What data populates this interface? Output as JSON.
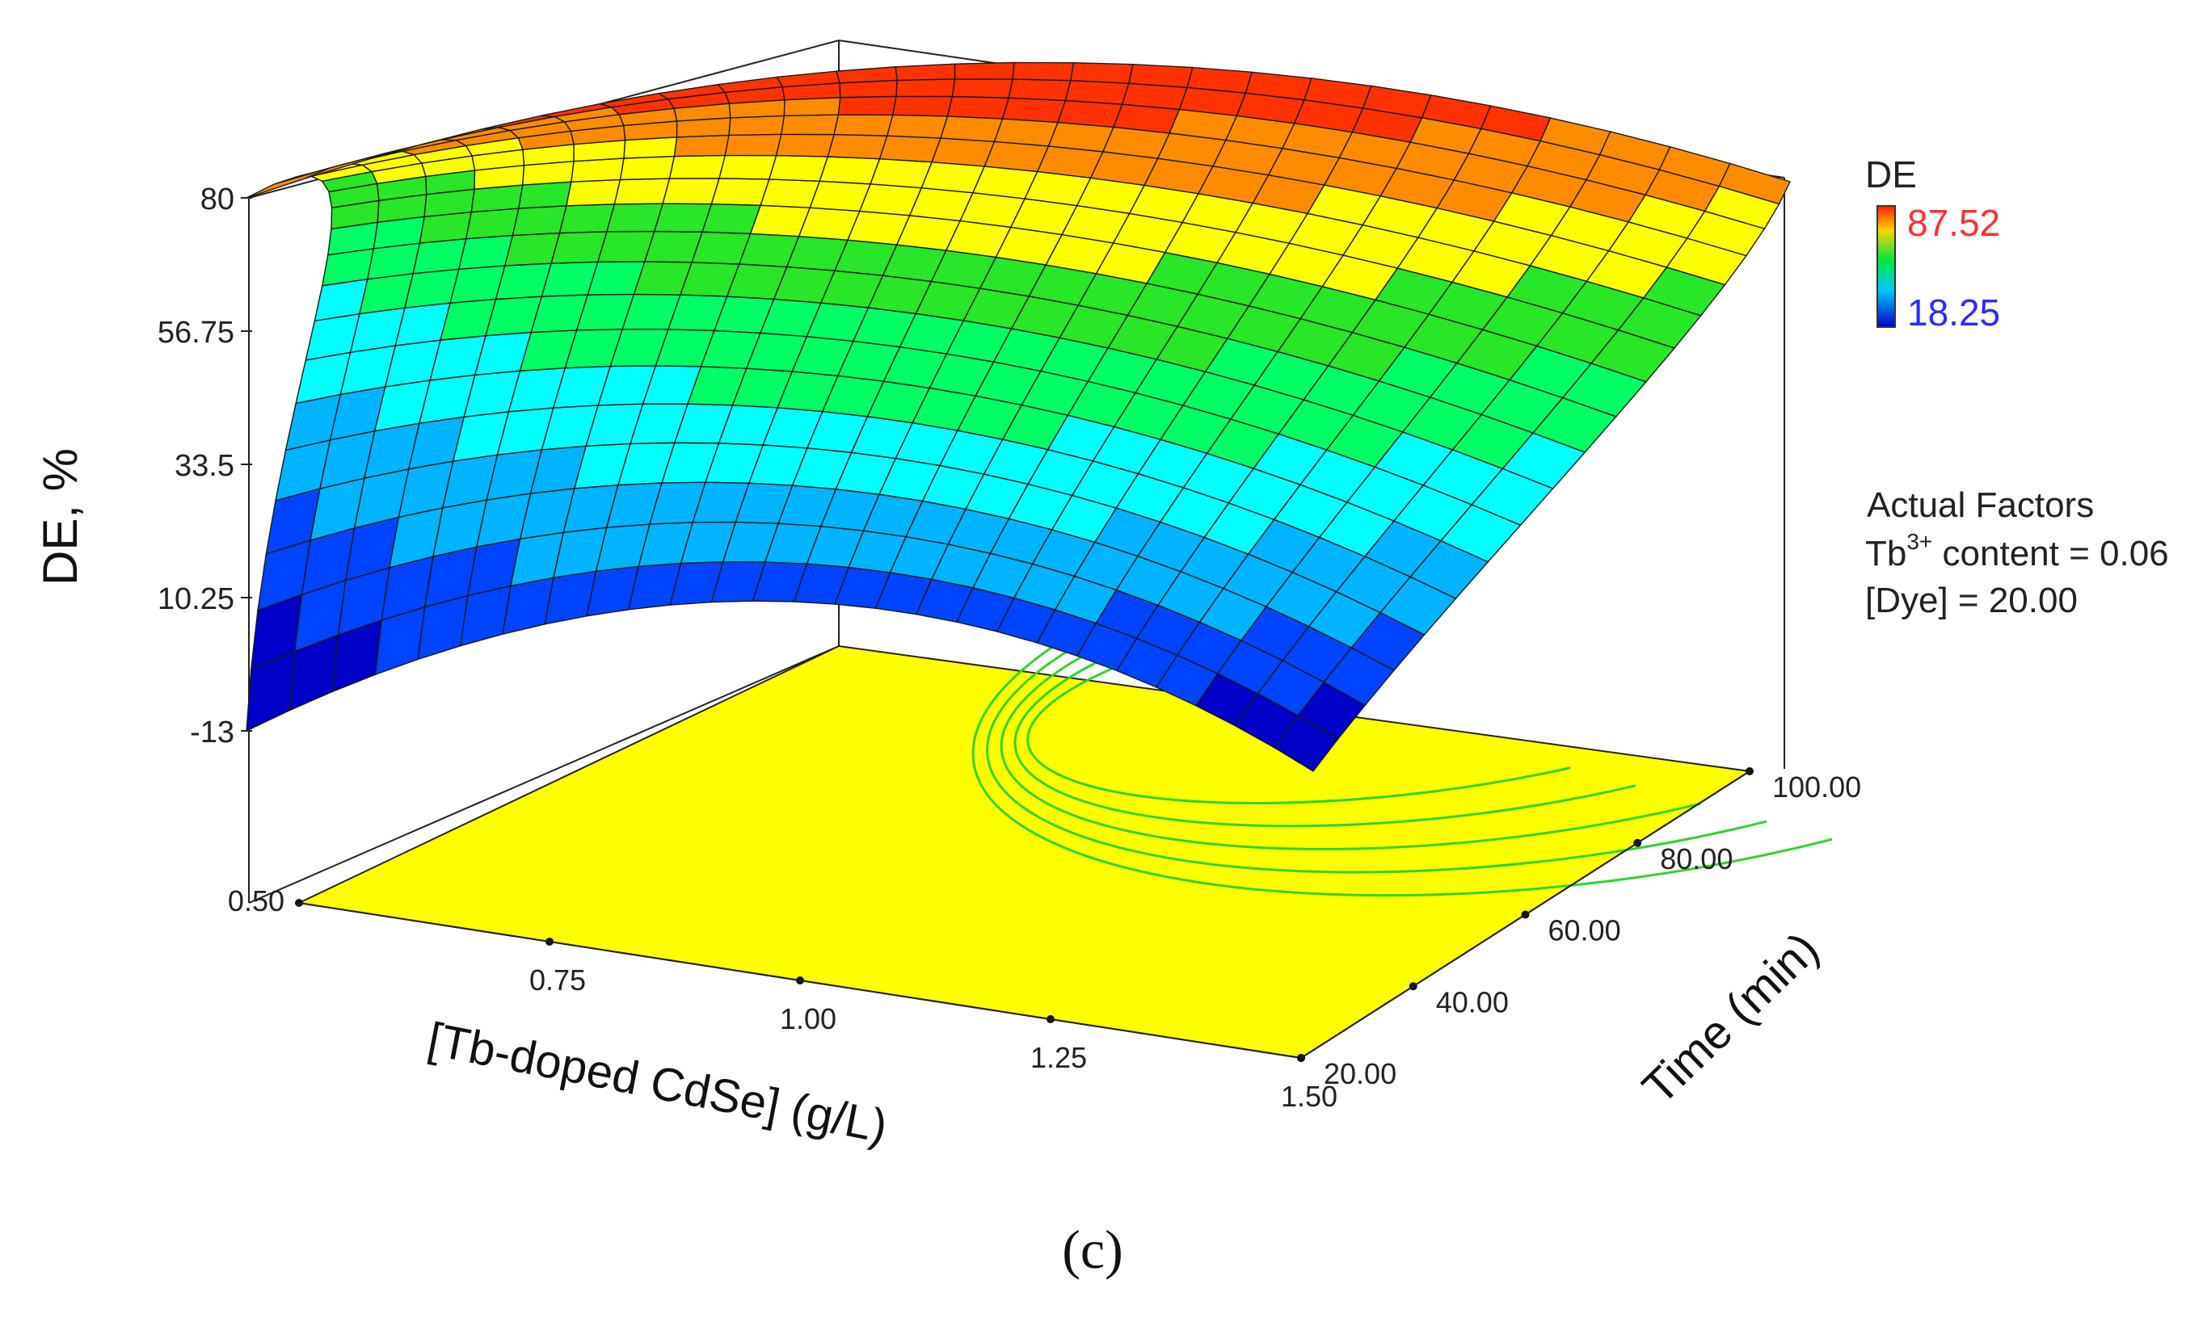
{
  "chart_data": {
    "type": "surface3d",
    "panel_label": "(c)",
    "zlabel": "DE, %",
    "xlabel": "[Tb-doped CdSe] (g/L)",
    "ylabel": "Time (min)",
    "z_ticks": [
      "80",
      "56.75",
      "33.5",
      "10.25",
      "-13"
    ],
    "x_ticks": [
      "0.50",
      "0.75",
      "1.00",
      "1.25",
      "1.50"
    ],
    "y_ticks": [
      "20.00",
      "40.00",
      "60.00",
      "80.00",
      "100.00"
    ],
    "zlim": [
      -13,
      80
    ],
    "xlim": [
      0.5,
      1.5
    ],
    "ylim": [
      20,
      100
    ],
    "colorbar": {
      "title": "DE",
      "max": "87.52",
      "min": "18.25",
      "max_color": "#ff3030",
      "min_color": "#2a2aff"
    },
    "annotation": {
      "heading": "Actual Factors",
      "tb_base": "Tb",
      "tb_sup": "3+",
      "tb_rest": " content = 0.06",
      "dye_line": "[Dye] = 20.00"
    },
    "surface_colors": [
      "#0000c8",
      "#0044ff",
      "#00b4ff",
      "#00ffff",
      "#00ff64",
      "#28e628",
      "#ffff00",
      "#ff8c00",
      "#ff3200"
    ],
    "floor_color": "#ffff00",
    "contour_color": "#2bd62b"
  }
}
